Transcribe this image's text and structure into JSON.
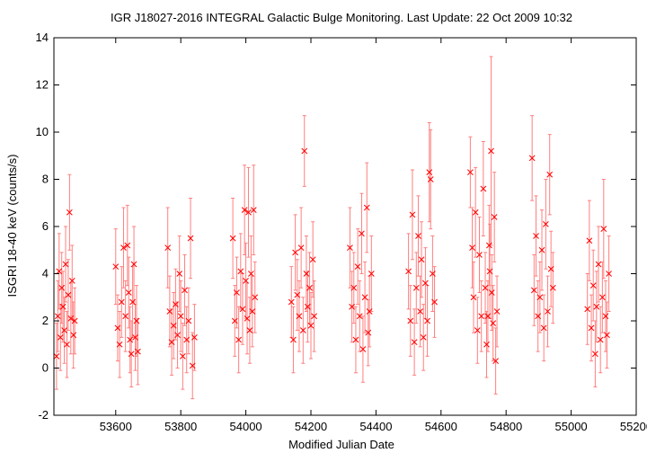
{
  "chart_data": {
    "type": "scatter",
    "title": "IGR J18027-2016   INTEGRAL Galactic Bulge Monitoring.  Last Update: 22 Oct 2009 10:32",
    "xlabel": "Modified Julian Date",
    "ylabel": "ISGRI 18-40 keV (counts/s)",
    "xlim": [
      53410,
      55200
    ],
    "ylim": [
      -2,
      14
    ],
    "xticks": [
      53600,
      53800,
      54000,
      54200,
      54400,
      54600,
      54800,
      55000,
      55200
    ],
    "yticks": [
      -2,
      0,
      2,
      4,
      6,
      8,
      10,
      12,
      14
    ],
    "grid": false,
    "marker": "x",
    "color": "#ff0000",
    "errorbar_color": "#ff7f7f",
    "series": [
      {
        "points": [
          [
            53418,
            0.5,
            1.4
          ],
          [
            53422,
            2.2,
            1.5
          ],
          [
            53426,
            4.1,
            1.6
          ],
          [
            53430,
            1.3,
            1.4
          ],
          [
            53434,
            3.4,
            1.5
          ],
          [
            53438,
            2.6,
            1.5
          ],
          [
            53442,
            1.6,
            1.4
          ],
          [
            53446,
            4.4,
            1.6
          ],
          [
            53450,
            1.0,
            1.4
          ],
          [
            53454,
            3.1,
            1.5
          ],
          [
            53458,
            6.6,
            1.6
          ],
          [
            53462,
            2.1,
            1.5
          ],
          [
            53466,
            3.7,
            1.5
          ],
          [
            53470,
            1.4,
            1.4
          ],
          [
            53474,
            2.0,
            1.4
          ],
          [
            53600,
            4.3,
            1.6
          ],
          [
            53606,
            1.7,
            1.4
          ],
          [
            53612,
            1.0,
            1.4
          ],
          [
            53618,
            2.8,
            1.5
          ],
          [
            53624,
            5.1,
            1.7
          ],
          [
            53630,
            2.2,
            1.5
          ],
          [
            53636,
            5.2,
            1.7
          ],
          [
            53640,
            3.2,
            1.5
          ],
          [
            53644,
            1.2,
            1.4
          ],
          [
            53648,
            0.6,
            1.4
          ],
          [
            53652,
            2.8,
            1.5
          ],
          [
            53656,
            4.4,
            1.6
          ],
          [
            53660,
            1.3,
            1.4
          ],
          [
            53664,
            2.0,
            1.5
          ],
          [
            53668,
            0.7,
            1.4
          ],
          [
            53760,
            5.1,
            1.7
          ],
          [
            53766,
            2.4,
            1.5
          ],
          [
            53772,
            1.1,
            1.4
          ],
          [
            53778,
            1.8,
            1.4
          ],
          [
            53784,
            2.7,
            1.5
          ],
          [
            53790,
            1.4,
            1.4
          ],
          [
            53796,
            4.0,
            1.6
          ],
          [
            53800,
            2.2,
            1.5
          ],
          [
            53806,
            0.5,
            1.4
          ],
          [
            53812,
            3.3,
            1.5
          ],
          [
            53818,
            1.2,
            1.4
          ],
          [
            53824,
            2.0,
            1.4
          ],
          [
            53830,
            5.5,
            1.7
          ],
          [
            53836,
            0.1,
            1.4
          ],
          [
            53842,
            1.3,
            1.4
          ],
          [
            53960,
            5.5,
            1.7
          ],
          [
            53966,
            2.0,
            1.5
          ],
          [
            53972,
            3.2,
            1.5
          ],
          [
            53978,
            1.2,
            1.4
          ],
          [
            53984,
            4.1,
            1.6
          ],
          [
            53990,
            2.5,
            1.5
          ],
          [
            53996,
            6.7,
            1.9
          ],
          [
            54000,
            3.7,
            1.6
          ],
          [
            54004,
            2.1,
            1.5
          ],
          [
            54008,
            6.6,
            1.9
          ],
          [
            54012,
            1.6,
            1.4
          ],
          [
            54016,
            4.0,
            1.6
          ],
          [
            54020,
            2.4,
            1.5
          ],
          [
            54024,
            6.7,
            1.9
          ],
          [
            54028,
            3.0,
            1.5
          ],
          [
            54140,
            2.8,
            1.5
          ],
          [
            54146,
            1.2,
            1.4
          ],
          [
            54152,
            4.9,
            1.6
          ],
          [
            54158,
            3.1,
            1.5
          ],
          [
            54164,
            2.2,
            1.5
          ],
          [
            54170,
            5.1,
            1.7
          ],
          [
            54176,
            1.6,
            1.4
          ],
          [
            54180,
            9.2,
            1.5
          ],
          [
            54186,
            4.0,
            1.6
          ],
          [
            54190,
            2.6,
            1.5
          ],
          [
            54196,
            3.4,
            1.5
          ],
          [
            54200,
            1.8,
            1.4
          ],
          [
            54206,
            4.6,
            1.6
          ],
          [
            54210,
            2.2,
            1.5
          ],
          [
            54320,
            5.1,
            1.7
          ],
          [
            54326,
            2.6,
            1.5
          ],
          [
            54332,
            3.4,
            1.5
          ],
          [
            54338,
            1.2,
            1.4
          ],
          [
            54344,
            4.3,
            1.6
          ],
          [
            54350,
            2.2,
            1.5
          ],
          [
            54356,
            5.7,
            1.7
          ],
          [
            54360,
            0.8,
            1.4
          ],
          [
            54366,
            3.0,
            1.5
          ],
          [
            54372,
            6.8,
            1.9
          ],
          [
            54376,
            1.5,
            1.4
          ],
          [
            54380,
            2.4,
            1.5
          ],
          [
            54386,
            4.0,
            1.6
          ],
          [
            54500,
            4.1,
            1.6
          ],
          [
            54506,
            2.0,
            1.5
          ],
          [
            54512,
            6.5,
            1.9
          ],
          [
            54518,
            1.1,
            1.4
          ],
          [
            54524,
            3.4,
            1.5
          ],
          [
            54530,
            5.6,
            1.7
          ],
          [
            54536,
            2.4,
            1.5
          ],
          [
            54540,
            4.6,
            1.6
          ],
          [
            54546,
            1.3,
            1.4
          ],
          [
            54552,
            3.6,
            1.5
          ],
          [
            54558,
            2.0,
            1.5
          ],
          [
            54564,
            8.3,
            2.1
          ],
          [
            54568,
            8.0,
            2.1
          ],
          [
            54574,
            4.0,
            1.6
          ],
          [
            54580,
            2.8,
            1.5
          ],
          [
            54690,
            8.3,
            1.5
          ],
          [
            54696,
            5.1,
            1.7
          ],
          [
            54700,
            3.0,
            1.5
          ],
          [
            54706,
            6.6,
            1.9
          ],
          [
            54712,
            1.6,
            1.4
          ],
          [
            54718,
            4.8,
            1.6
          ],
          [
            54724,
            2.2,
            1.5
          ],
          [
            54730,
            7.6,
            2.0
          ],
          [
            54736,
            3.4,
            1.5
          ],
          [
            54740,
            1.0,
            1.4
          ],
          [
            54744,
            2.2,
            1.5
          ],
          [
            54748,
            5.2,
            1.7
          ],
          [
            54750,
            4.1,
            2.0
          ],
          [
            54754,
            9.2,
            4.0
          ],
          [
            54756,
            3.2,
            1.6
          ],
          [
            54760,
            1.9,
            1.6
          ],
          [
            54764,
            6.4,
            1.9
          ],
          [
            54768,
            0.3,
            1.4
          ],
          [
            54772,
            2.4,
            1.5
          ],
          [
            54880,
            8.9,
            1.8
          ],
          [
            54886,
            3.3,
            1.5
          ],
          [
            54892,
            5.6,
            1.7
          ],
          [
            54898,
            2.2,
            1.5
          ],
          [
            54904,
            3.0,
            1.5
          ],
          [
            54910,
            5.0,
            1.7
          ],
          [
            54916,
            1.7,
            1.4
          ],
          [
            54922,
            6.1,
            1.9
          ],
          [
            54928,
            2.4,
            1.5
          ],
          [
            54934,
            8.2,
            1.7
          ],
          [
            54938,
            4.2,
            1.6
          ],
          [
            54944,
            3.4,
            1.5
          ],
          [
            55050,
            2.5,
            1.5
          ],
          [
            55056,
            5.4,
            1.7
          ],
          [
            55062,
            1.7,
            1.4
          ],
          [
            55068,
            3.5,
            1.5
          ],
          [
            55074,
            0.6,
            1.4
          ],
          [
            55078,
            2.6,
            1.5
          ],
          [
            55084,
            4.4,
            1.6
          ],
          [
            55090,
            1.2,
            1.4
          ],
          [
            55096,
            3.0,
            1.5
          ],
          [
            55100,
            5.9,
            2.1
          ],
          [
            55106,
            2.2,
            1.5
          ],
          [
            55110,
            1.4,
            1.4
          ],
          [
            55116,
            4.0,
            1.6
          ]
        ]
      }
    ]
  }
}
